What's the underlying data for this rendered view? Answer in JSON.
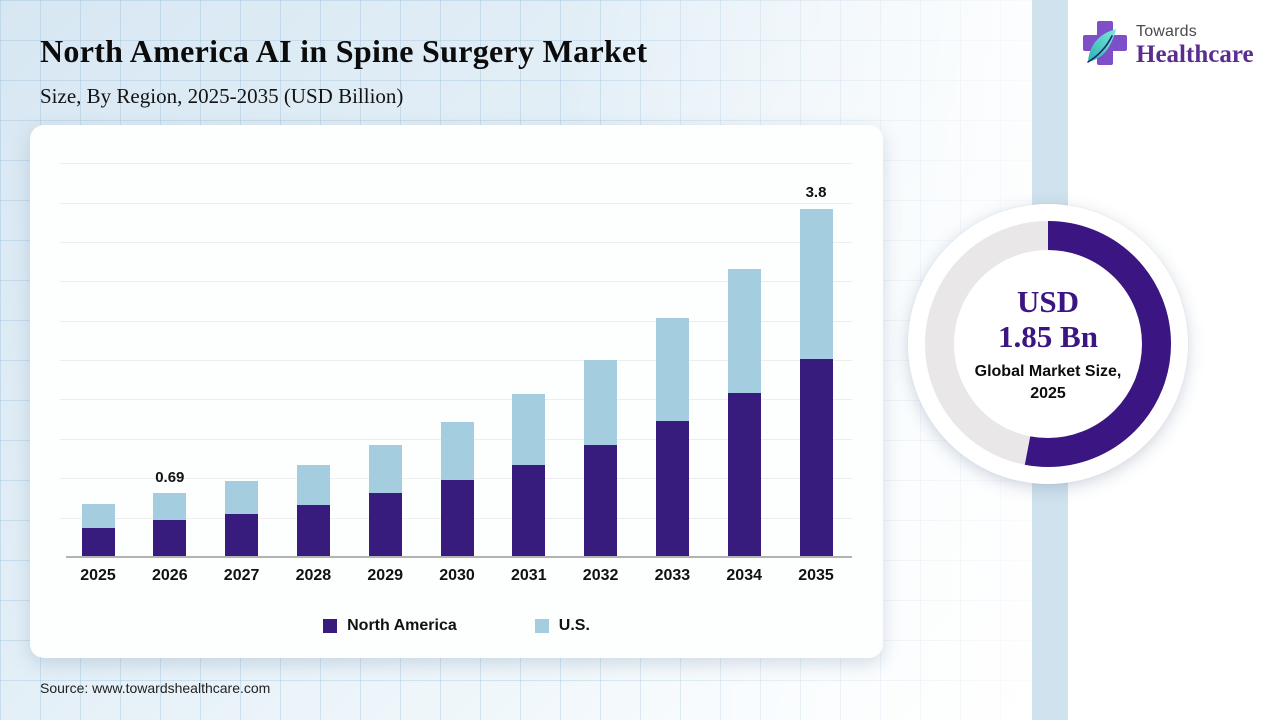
{
  "page": {
    "title": "North America AI in Spine Surgery Market",
    "subtitle": "Size, By Region, 2025-2035 (USD Billion)",
    "source": "Source: www.towardshealthcare.com"
  },
  "logo": {
    "name_top": "Towards",
    "name_bottom": "Healthcare",
    "cross_color": "#7e4fc9",
    "leaf_color_light": "#7de8d8",
    "leaf_color_dark": "#2bb3b3"
  },
  "donut": {
    "value_line1": "USD",
    "value_line2": "1.85 Bn",
    "caption_line1": "Global Market Size,",
    "caption_line2": "2025",
    "fill_percent": 53,
    "arc_color": "#3b1582",
    "track_color": "#e9e7e8"
  },
  "chart_data": {
    "type": "bar",
    "stacked": true,
    "title": "North America AI in Spine Surgery Market Size, By Region, 2025-2035 (USD Billion)",
    "value_unit": "USD Billion",
    "categories": [
      "2025",
      "2026",
      "2027",
      "2028",
      "2029",
      "2030",
      "2031",
      "2032",
      "2033",
      "2034",
      "2035"
    ],
    "series": [
      {
        "name": "North America",
        "color": "#371c7e",
        "values": [
          0.32,
          0.4,
          0.47,
          0.57,
          0.7,
          0.84,
          1.01,
          1.22,
          1.48,
          1.79,
          2.16
        ]
      },
      {
        "name": "U.S.",
        "color": "#a5cde0",
        "values": [
          0.26,
          0.29,
          0.36,
          0.44,
          0.52,
          0.63,
          0.77,
          0.93,
          1.12,
          1.35,
          1.64
        ]
      }
    ],
    "totals": [
      0.58,
      0.69,
      0.83,
      1.01,
      1.22,
      1.47,
      1.78,
      2.15,
      2.6,
      3.14,
      3.8
    ],
    "annotations": [
      {
        "category": "2026",
        "label": "0.69"
      },
      {
        "category": "2035",
        "label": "3.8"
      }
    ],
    "ylim": [
      0,
      4.3
    ],
    "grid": true,
    "legend_position": "bottom"
  }
}
